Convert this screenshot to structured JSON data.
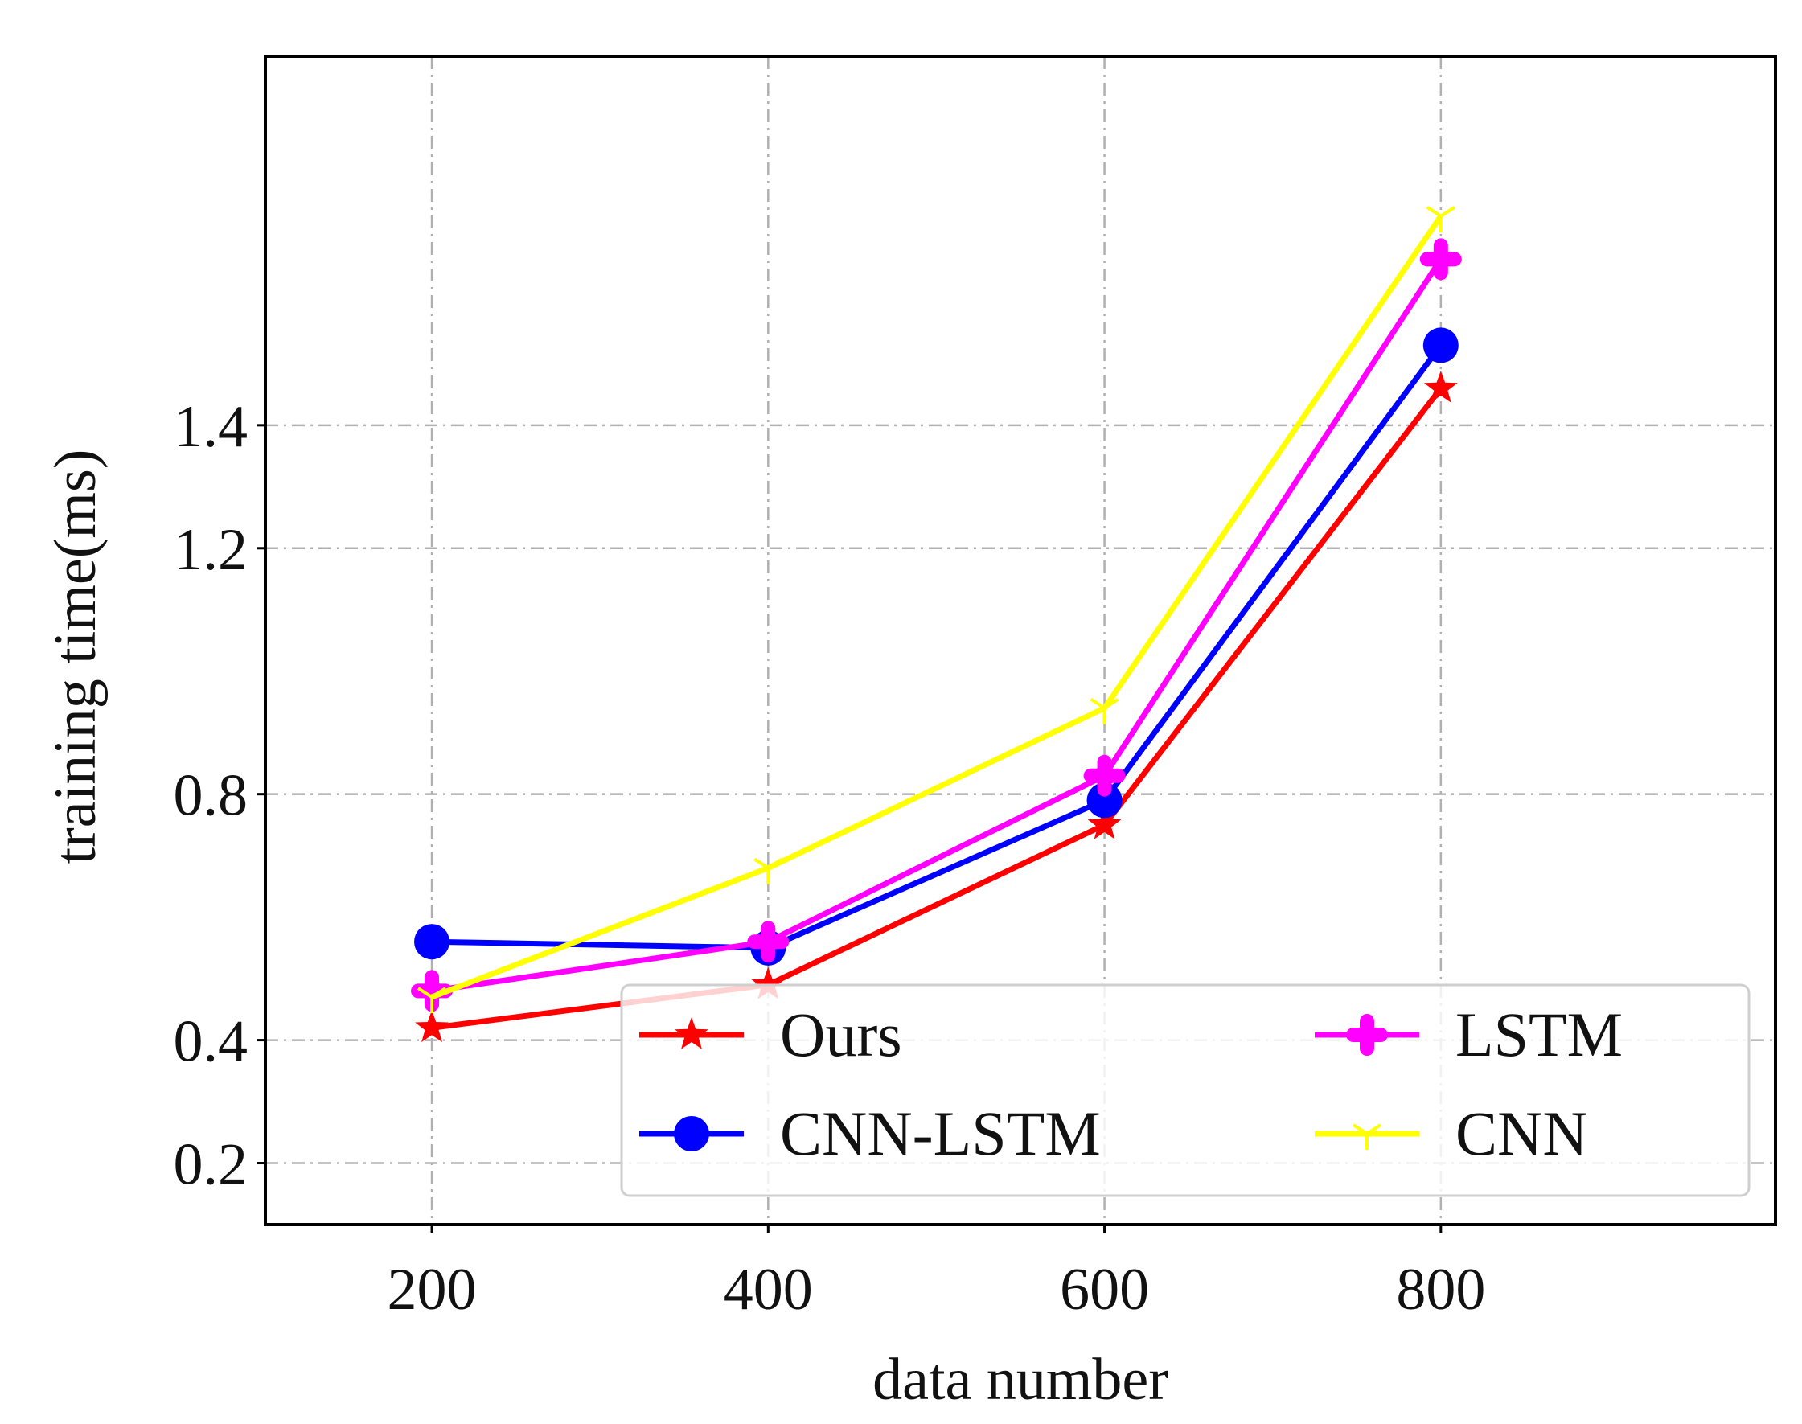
{
  "chart_data": {
    "type": "line",
    "title": "",
    "xlabel": "data number",
    "ylabel": "training time(ms)",
    "categories": [
      200,
      400,
      600,
      800
    ],
    "xlim": [
      101,
      999
    ],
    "ylim": [
      0.1,
      2.0
    ],
    "xticks": [
      "200",
      "400",
      "600",
      "800"
    ],
    "yticks": [
      "0.2",
      "0.4",
      "0.8",
      "1.2",
      "1.4"
    ],
    "ytick_values": [
      0.2,
      0.4,
      0.8,
      1.2,
      1.4
    ],
    "grid": true,
    "legend_position": "lower-right",
    "series": [
      {
        "name": "Ours",
        "color": "#ff0000",
        "marker": "star",
        "values": [
          0.42,
          0.49,
          0.75,
          1.46
        ]
      },
      {
        "name": "CNN-LSTM",
        "color": "#0000ff",
        "marker": "circle",
        "values": [
          0.56,
          0.55,
          0.79,
          1.53
        ]
      },
      {
        "name": "LSTM",
        "color": "#ff00ff",
        "marker": "plus-filled",
        "values": [
          0.48,
          0.56,
          0.83,
          1.67
        ]
      },
      {
        "name": "CNN",
        "color": "#ffff00",
        "marker": "tri",
        "values": [
          0.47,
          0.68,
          0.94,
          1.74
        ]
      }
    ]
  }
}
